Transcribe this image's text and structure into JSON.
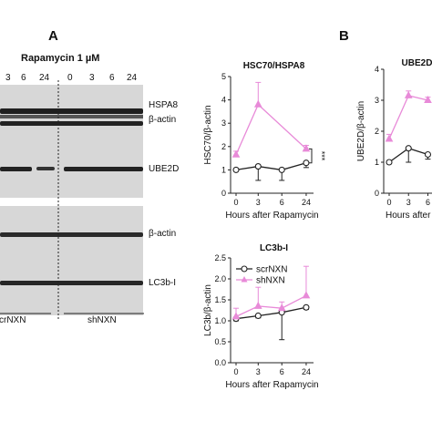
{
  "panel_letters": {
    "a": "A",
    "b": "B"
  },
  "blot": {
    "treatment": "Rapamycin 1 µM",
    "timepoints": [
      "3",
      "6",
      "24",
      "0",
      "3",
      "6",
      "24"
    ],
    "band_labels": [
      "HSPA8",
      "β-actin",
      "UBE2D",
      "β-actin",
      "LC3b-I"
    ],
    "group_labels": [
      "scrNXN",
      "shNXN"
    ]
  },
  "charts": [
    {
      "title": "HSC70/HSPA8",
      "ylabel": "HSC70/β-actin",
      "xlabel": "Hours after Rapamycin",
      "significance": "***",
      "tick_labels_y": [
        "0",
        "1",
        "2",
        "3",
        "4",
        "5"
      ],
      "tick_labels_x": [
        "0",
        "3",
        "6",
        "24"
      ]
    },
    {
      "title": "LC3b-I",
      "ylabel": "LC3b/β-actin",
      "xlabel": "Hours after Rapamycin",
      "tick_labels_y": [
        "0.0",
        "0.5",
        "1.0",
        "1.5",
        "2.0",
        "2.5"
      ],
      "tick_labels_x": [
        "0",
        "3",
        "6",
        "24"
      ],
      "legend": [
        "scrNXN",
        "shNXN"
      ]
    },
    {
      "title": "UBE2D",
      "ylabel": "UBE2D/β-actin",
      "xlabel": "Hours after Ra",
      "tick_labels_y": [
        "0",
        "1",
        "2",
        "3",
        "4"
      ],
      "tick_labels_x": [
        "0",
        "3",
        "6"
      ]
    }
  ],
  "chart_data": [
    {
      "type": "line",
      "title": "HSC70/HSPA8",
      "xlabel": "Hours after Rapamycin",
      "ylabel": "HSC70/β-actin",
      "categories": [
        "0",
        "3",
        "6",
        "24"
      ],
      "ylim": [
        0,
        5
      ],
      "series": [
        {
          "name": "scrNXN",
          "values": [
            1.0,
            1.15,
            1.0,
            1.3
          ],
          "err": [
            0.05,
            0.6,
            0.45,
            0.2
          ]
        },
        {
          "name": "shNXN",
          "values": [
            1.65,
            3.8,
            null,
            1.9
          ],
          "err": [
            0.15,
            0.95,
            null,
            0.15
          ]
        }
      ],
      "colors": {
        "scrNXN": "#222222",
        "shNXN": "#e88ad8"
      },
      "annotation": "***"
    },
    {
      "type": "line",
      "title": "LC3b-I",
      "xlabel": "Hours after Rapamycin",
      "ylabel": "LC3b/β-actin",
      "categories": [
        "0",
        "3",
        "6",
        "24"
      ],
      "ylim": [
        0,
        2.5
      ],
      "series": [
        {
          "name": "scrNXN",
          "values": [
            1.05,
            1.12,
            1.2,
            1.32
          ],
          "err": [
            0.05,
            0.05,
            0.65,
            0.05
          ]
        },
        {
          "name": "shNXN",
          "values": [
            1.1,
            1.35,
            1.3,
            1.6
          ],
          "err": [
            0.2,
            0.45,
            0.15,
            0.7
          ]
        }
      ],
      "colors": {
        "scrNXN": "#222222",
        "shNXN": "#e88ad8"
      },
      "legend": "top-left"
    },
    {
      "type": "line",
      "title": "UBE2D",
      "xlabel": "Hours after Ra",
      "ylabel": "UBE2D/β-actin",
      "categories": [
        "0",
        "3",
        "6"
      ],
      "ylim": [
        0,
        4
      ],
      "series": [
        {
          "name": "scrNXN",
          "values": [
            1.0,
            1.45,
            1.25
          ],
          "err": [
            0.05,
            0.45,
            0.15
          ]
        },
        {
          "name": "shNXN",
          "values": [
            1.75,
            3.15,
            3.0
          ],
          "err": [
            0.15,
            0.15,
            0.1
          ]
        }
      ],
      "colors": {
        "scrNXN": "#222222",
        "shNXN": "#e88ad8"
      }
    }
  ]
}
